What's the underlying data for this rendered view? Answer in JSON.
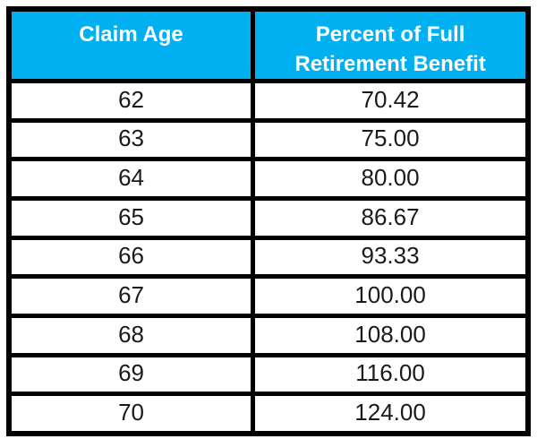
{
  "table": {
    "header": {
      "col1": "Claim Age",
      "col2": "Percent of Full Retirement Benefit"
    },
    "rows": [
      {
        "age": "62",
        "percent": "70.42"
      },
      {
        "age": "63",
        "percent": "75.00"
      },
      {
        "age": "64",
        "percent": "80.00"
      },
      {
        "age": "65",
        "percent": "86.67"
      },
      {
        "age": "66",
        "percent": "93.33"
      },
      {
        "age": "67",
        "percent": "100.00"
      },
      {
        "age": "68",
        "percent": "108.00"
      },
      {
        "age": "69",
        "percent": "116.00"
      },
      {
        "age": "70",
        "percent": "124.00"
      }
    ]
  },
  "colors": {
    "header_bg": "#00B0F0",
    "header_text": "#FFFFFF",
    "border": "#000000",
    "cell_bg": "#FFFFFF",
    "cell_text": "#1A1A1A"
  },
  "chart_data": {
    "type": "table",
    "title": "",
    "columns": [
      "Claim Age",
      "Percent of Full Retirement Benefit"
    ],
    "rows": [
      [
        62,
        70.42
      ],
      [
        63,
        75.0
      ],
      [
        64,
        80.0
      ],
      [
        65,
        86.67
      ],
      [
        66,
        93.33
      ],
      [
        67,
        100.0
      ],
      [
        68,
        108.0
      ],
      [
        69,
        116.0
      ],
      [
        70,
        124.0
      ]
    ]
  }
}
